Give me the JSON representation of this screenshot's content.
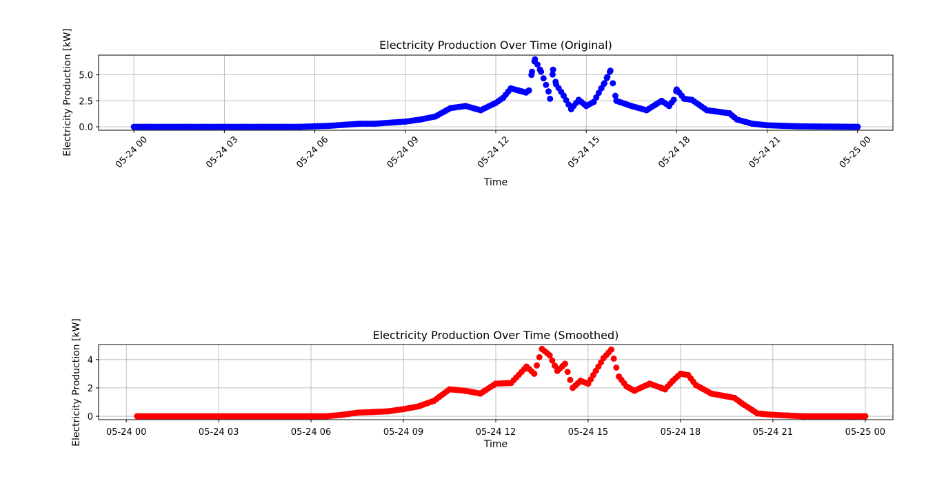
{
  "chart_data": [
    {
      "type": "scatter",
      "title": "Electricity Production Over Time (Original)",
      "xlabel": "Time",
      "ylabel": "Electricity Production [kW]",
      "color": "#0000ff",
      "x_tick_labels": [
        "05-24 00",
        "05-24 03",
        "05-24 06",
        "05-24 09",
        "05-24 12",
        "05-24 15",
        "05-24 18",
        "05-24 21",
        "05-25 00"
      ],
      "y_tick_labels": [
        "0.0",
        "2.5",
        "5.0"
      ],
      "y_ticks": [
        0,
        2.5,
        5.0
      ],
      "xlim_hours": [
        -1.17,
        25.17
      ],
      "ylim": [
        -0.33,
        6.9
      ],
      "grid": true,
      "series": [
        {
          "x_hours": [
            0,
            5.5,
            6.0,
            6.5,
            7.0,
            7.5,
            8.0,
            8.5,
            9.0,
            9.5,
            10.0,
            10.5,
            11.0,
            11.5,
            12.0,
            12.25,
            12.5,
            12.75,
            13.0,
            13.1,
            13.2,
            13.3,
            13.5,
            13.75,
            13.8,
            13.9,
            14.0,
            14.25,
            14.5,
            14.75,
            15.0,
            15.25,
            15.5,
            15.6,
            15.7,
            15.8,
            16.0,
            16.5,
            17.0,
            17.5,
            17.75,
            17.9,
            18.0,
            18.25,
            18.5,
            19.0,
            19.5,
            19.75,
            20.0,
            20.5,
            21.0,
            21.5,
            22.0,
            24.0
          ],
          "values": [
            0.0,
            0.0,
            0.05,
            0.1,
            0.2,
            0.3,
            0.3,
            0.4,
            0.5,
            0.7,
            1.0,
            1.8,
            2.0,
            1.6,
            2.3,
            2.8,
            3.7,
            3.5,
            3.3,
            3.5,
            5.3,
            6.5,
            5.3,
            3.4,
            2.7,
            5.5,
            4.1,
            3.0,
            1.7,
            2.6,
            2.0,
            2.4,
            3.7,
            4.2,
            4.8,
            5.4,
            2.5,
            2.0,
            1.6,
            2.5,
            2.0,
            2.6,
            3.6,
            2.7,
            2.6,
            1.6,
            1.4,
            1.3,
            0.7,
            0.3,
            0.15,
            0.1,
            0.05,
            0.0
          ]
        }
      ]
    },
    {
      "type": "scatter",
      "title": "Electricity Production Over Time (Smoothed)",
      "xlabel": "Time",
      "ylabel": "Electricity Production [kW]",
      "color": "#ff0000",
      "x_tick_labels": [
        "05-24 00",
        "05-24 03",
        "05-24 06",
        "05-24 09",
        "05-24 12",
        "05-24 15",
        "05-24 18",
        "05-24 21",
        "05-25 00"
      ],
      "y_tick_labels": [
        "0",
        "2",
        "4"
      ],
      "y_ticks": [
        0,
        2,
        4
      ],
      "xlim_hours": [
        -0.9,
        24.9
      ],
      "ylim": [
        -0.24,
        5.06
      ],
      "grid": true,
      "series": [
        {
          "x_hours": [
            0.35,
            6.5,
            7.0,
            7.5,
            8.0,
            8.5,
            9.0,
            9.5,
            10.0,
            10.5,
            11.0,
            11.5,
            12.0,
            12.5,
            13.0,
            13.25,
            13.5,
            13.75,
            14.0,
            14.25,
            14.5,
            14.75,
            15.0,
            15.25,
            15.5,
            15.75,
            16.0,
            16.25,
            16.5,
            17.0,
            17.5,
            17.75,
            18.0,
            18.25,
            18.5,
            19.0,
            19.5,
            19.75,
            20.0,
            20.5,
            21.0,
            21.5,
            22.0,
            23.5,
            24.0
          ],
          "values": [
            0.0,
            0.0,
            0.1,
            0.25,
            0.3,
            0.35,
            0.5,
            0.7,
            1.1,
            1.9,
            1.8,
            1.6,
            2.3,
            2.35,
            3.5,
            3.0,
            4.75,
            4.3,
            3.2,
            3.7,
            2.0,
            2.5,
            2.3,
            3.2,
            4.1,
            4.7,
            2.8,
            2.1,
            1.8,
            2.3,
            1.9,
            2.5,
            3.0,
            2.9,
            2.2,
            1.6,
            1.4,
            1.3,
            0.9,
            0.2,
            0.1,
            0.05,
            0.0,
            0.0,
            0.0
          ]
        }
      ]
    }
  ]
}
